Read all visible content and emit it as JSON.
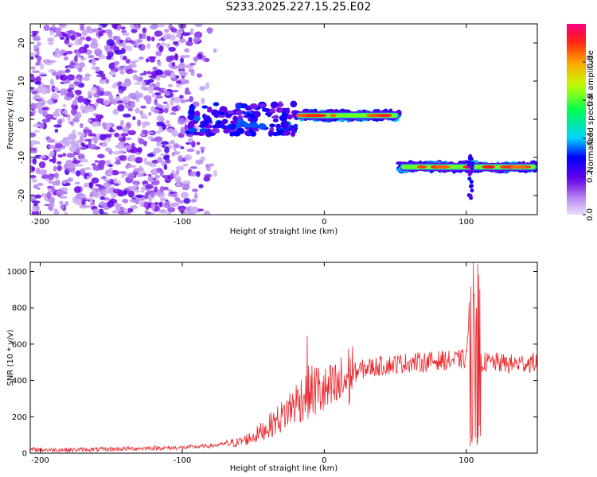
{
  "title": "S233.2025.227.15.25.E02",
  "chart_data": [
    {
      "type": "heatmap",
      "name": "spectrogram",
      "xlabel": "Height of straight line (km)",
      "ylabel": "Frequency (Hz)",
      "xlim": [
        -207,
        150
      ],
      "ylim": [
        -25,
        25
      ],
      "xticks": [
        -200,
        -100,
        0,
        100
      ],
      "xtick_labels": [
        "-200",
        "-100",
        "0",
        "100"
      ],
      "yticks": [
        -20,
        -10,
        0,
        10,
        20
      ],
      "ytick_labels": [
        "-20",
        "-10",
        "0",
        "10",
        "20"
      ],
      "colorbar": {
        "label": "Normalized spectral amplitude",
        "range": [
          0,
          1
        ],
        "ticks": [
          0.0,
          0.2,
          0.4,
          0.6,
          0.8
        ],
        "tick_labels": [
          "0.0",
          "0.2",
          "0.4",
          "0.6",
          "0.8"
        ]
      },
      "segments": [
        {
          "x_start": -95,
          "x_end": -20,
          "freq": 0,
          "freq_spread": 4,
          "amplitude": 0.25
        },
        {
          "x_start": -20,
          "x_end": 53,
          "freq": 1,
          "freq_spread": 1,
          "amplitude": 0.85
        },
        {
          "x_start": 53,
          "x_end": 150,
          "freq": -12.5,
          "freq_spread": 1,
          "amplitude": 0.9
        }
      ]
    },
    {
      "type": "line",
      "name": "snr",
      "xlabel": "Height of straight line (km)",
      "ylabel": "SNR (10 * v/v)",
      "xlim": [
        -207,
        150
      ],
      "ylim": [
        0,
        1050
      ],
      "xticks": [
        -200,
        -100,
        0,
        100
      ],
      "xtick_labels": [
        "-200",
        "-100",
        "0",
        "100"
      ],
      "yticks": [
        0,
        200,
        400,
        600,
        800,
        1000
      ],
      "ytick_labels": [
        "0",
        "200",
        "400",
        "600",
        "800",
        "1000"
      ],
      "color": "#e8262c",
      "series": [
        {
          "name": "SNR",
          "x": [
            -207,
            -180,
            -150,
            -120,
            -100,
            -80,
            -60,
            -50,
            -40,
            -30,
            -20,
            -12,
            -5,
            0,
            10,
            20,
            30,
            40,
            50,
            60,
            70,
            80,
            90,
            100,
            103,
            105,
            107,
            110,
            120,
            130,
            140,
            150
          ],
          "y": [
            20,
            18,
            22,
            28,
            30,
            40,
            60,
            90,
            140,
            200,
            280,
            330,
            350,
            330,
            360,
            440,
            470,
            480,
            490,
            500,
            500,
            510,
            510,
            520,
            900,
            60,
            950,
            500,
            500,
            490,
            495,
            500
          ]
        }
      ],
      "spikes": [
        {
          "x": -12,
          "y": 645
        },
        {
          "x": 105,
          "y": 1050
        },
        {
          "x": 108,
          "y": 1040
        }
      ]
    }
  ]
}
